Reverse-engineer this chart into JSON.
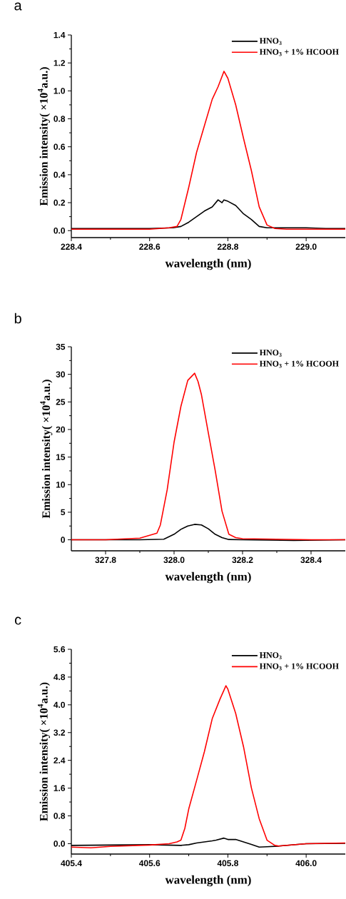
{
  "chart_data": [
    {
      "type": "line",
      "title": "a",
      "xlabel": "wavelength (nm)",
      "ylabel": "Emission intensity( ×10$^{4}$a.u.)",
      "legend": "top right",
      "xlim": [
        228.4,
        229.1
      ],
      "ylim": [
        -0.05,
        1.4
      ],
      "xticks": [
        228.4,
        228.6,
        228.8,
        {
          "value": 229.0,
          "label": "229.0"
        }
      ],
      "yticks": [
        {
          "value": 0,
          "label": "0.0"
        },
        0.2,
        0.4,
        0.6,
        0.8,
        {
          "value": 1.0,
          "label": "1.0"
        },
        1.2,
        1.4
      ],
      "series": [
        {
          "name": "HNO$_{3}$",
          "color": "#000000",
          "x": [
            228.4,
            228.45,
            228.5,
            228.55,
            228.6,
            228.66,
            228.68,
            228.7,
            228.72,
            228.74,
            228.76,
            228.775,
            228.785,
            228.79,
            228.8,
            228.82,
            228.84,
            228.86,
            228.88,
            228.9,
            228.95,
            229.0,
            229.05,
            229.1
          ],
          "values": [
            0.015,
            0.015,
            0.015,
            0.015,
            0.015,
            0.02,
            0.03,
            0.06,
            0.1,
            0.14,
            0.17,
            0.22,
            0.2,
            0.22,
            0.21,
            0.18,
            0.12,
            0.08,
            0.03,
            0.02,
            0.02,
            0.02,
            0.015,
            0.015
          ]
        },
        {
          "name": "HNO$_{3}$ + 1% HCOOH",
          "color": "#ff0000",
          "x": [
            228.4,
            228.45,
            228.5,
            228.55,
            228.6,
            228.65,
            228.67,
            228.68,
            228.7,
            228.72,
            228.74,
            228.76,
            228.775,
            228.79,
            228.8,
            228.82,
            228.84,
            228.86,
            228.88,
            228.9,
            228.92,
            228.95,
            229.0,
            229.05,
            229.1
          ],
          "values": [
            0.01,
            0.01,
            0.01,
            0.01,
            0.01,
            0.02,
            0.03,
            0.08,
            0.31,
            0.56,
            0.75,
            0.94,
            1.03,
            1.14,
            1.09,
            0.9,
            0.66,
            0.43,
            0.17,
            0.04,
            0.015,
            0.01,
            0.01,
            0.01,
            0.01
          ]
        }
      ]
    },
    {
      "type": "line",
      "title": "b",
      "xlabel": "wavelength (nm)",
      "ylabel": "Emission intensity( ×10$^{4}$a.u.)",
      "legend": "top right",
      "xlim": [
        327.7,
        328.5
      ],
      "ylim": [
        -2,
        35
      ],
      "xticks": [
        327.8,
        {
          "value": 328.0,
          "label": "328.0"
        },
        328.2,
        328.4
      ],
      "yticks": [
        0,
        5,
        10,
        15,
        20,
        25,
        30,
        35
      ],
      "series": [
        {
          "name": "HNO$_{3}$",
          "color": "#000000",
          "x": [
            327.7,
            327.8,
            327.9,
            327.97,
            328.0,
            328.02,
            328.04,
            328.06,
            328.08,
            328.1,
            328.12,
            328.14,
            328.16,
            328.2,
            328.35,
            328.5
          ],
          "values": [
            0,
            0,
            0,
            0.1,
            1.0,
            1.9,
            2.5,
            2.8,
            2.7,
            2.0,
            1.0,
            0.4,
            0.05,
            0,
            -0.1,
            0
          ]
        },
        {
          "name": "HNO$_{3}$ + 1% HCOOH",
          "color": "#ff0000",
          "x": [
            327.7,
            327.8,
            327.9,
            327.95,
            327.96,
            327.98,
            328.0,
            328.02,
            328.04,
            328.06,
            328.07,
            328.08,
            328.1,
            328.12,
            328.14,
            328.16,
            328.18,
            328.2,
            328.3,
            328.4,
            328.5
          ],
          "values": [
            0,
            0,
            0.3,
            1.2,
            2.7,
            9.1,
            17.7,
            24.2,
            28.9,
            30.2,
            28.7,
            26.3,
            19.4,
            12.6,
            5.2,
            1.0,
            0.4,
            0.2,
            0.1,
            0,
            0
          ]
        }
      ]
    },
    {
      "type": "line",
      "title": "c",
      "xlabel": "wavelength (nm)",
      "ylabel": "Emission intensity( ×10$^{4}$a.u.)",
      "legend": "top right",
      "xlim": [
        405.4,
        406.1
      ],
      "ylim": [
        -0.3,
        5.6
      ],
      "xticks": [
        405.4,
        405.6,
        405.8,
        {
          "value": 406.0,
          "label": "406.0"
        }
      ],
      "yticks": [
        {
          "value": 0,
          "label": "0.0"
        },
        0.8,
        1.6,
        2.4,
        3.2,
        {
          "value": 4.0,
          "label": "4.0"
        },
        4.8,
        5.6
      ],
      "series": [
        {
          "name": "HNO$_{3}$",
          "color": "#000000",
          "x": [
            405.4,
            405.5,
            405.6,
            405.68,
            405.7,
            405.72,
            405.76,
            405.77,
            405.79,
            405.8,
            405.82,
            405.84,
            405.86,
            405.88,
            405.9,
            405.93,
            406.0,
            406.1
          ],
          "values": [
            -0.05,
            -0.04,
            -0.03,
            -0.05,
            -0.03,
            0.02,
            0.08,
            0.1,
            0.16,
            0.12,
            0.12,
            0.05,
            -0.02,
            -0.1,
            -0.09,
            -0.07,
            0,
            0.01
          ]
        },
        {
          "name": "HNO$_{3}$ + 1% HCOOH",
          "color": "#ff0000",
          "x": [
            405.4,
            405.45,
            405.5,
            405.6,
            405.65,
            405.67,
            405.68,
            405.69,
            405.7,
            405.72,
            405.74,
            405.76,
            405.78,
            405.795,
            405.8,
            405.82,
            405.84,
            405.86,
            405.88,
            405.9,
            405.92,
            405.93,
            406.0,
            406.1
          ],
          "values": [
            -0.1,
            -0.12,
            -0.08,
            -0.04,
            0,
            0.05,
            0.1,
            0.44,
            1.0,
            1.82,
            2.65,
            3.6,
            4.17,
            4.55,
            4.45,
            3.75,
            2.79,
            1.61,
            0.72,
            0.1,
            -0.05,
            -0.07,
            0,
            0.02
          ]
        }
      ]
    }
  ]
}
